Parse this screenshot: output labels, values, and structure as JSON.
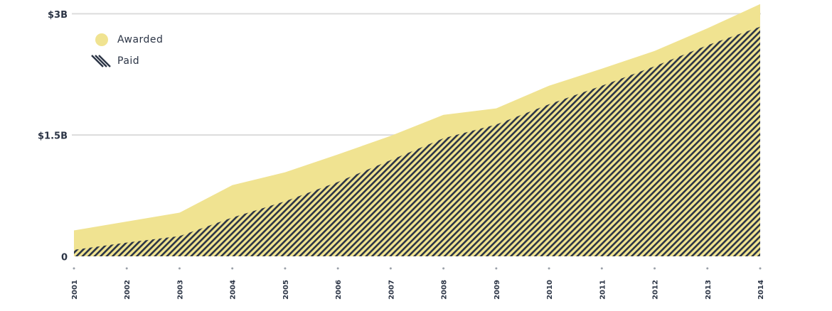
{
  "chart_data": {
    "type": "area",
    "categories": [
      "2001",
      "2002",
      "2003",
      "2004",
      "2005",
      "2006",
      "2007",
      "2008",
      "2009",
      "2010",
      "2011",
      "2012",
      "2013",
      "2014"
    ],
    "series": [
      {
        "name": "Awarded",
        "color": "#f0e391",
        "values": [
          0.32,
          0.43,
          0.54,
          0.88,
          1.04,
          1.26,
          1.49,
          1.75,
          1.83,
          2.11,
          2.32,
          2.54,
          2.82,
          3.12
        ]
      },
      {
        "name": "Paid",
        "color": "#2b3445",
        "values": [
          0.08,
          0.17,
          0.25,
          0.48,
          0.68,
          0.92,
          1.19,
          1.46,
          1.63,
          1.88,
          2.11,
          2.35,
          2.61,
          2.84
        ]
      }
    ],
    "ylim": [
      0,
      3.17
    ],
    "yticks": [
      0,
      {
        "value": 1.5,
        "label": "$1.5B"
      },
      {
        "value": 3,
        "label": "$3B"
      }
    ],
    "grid": true,
    "legend": "top-left"
  }
}
